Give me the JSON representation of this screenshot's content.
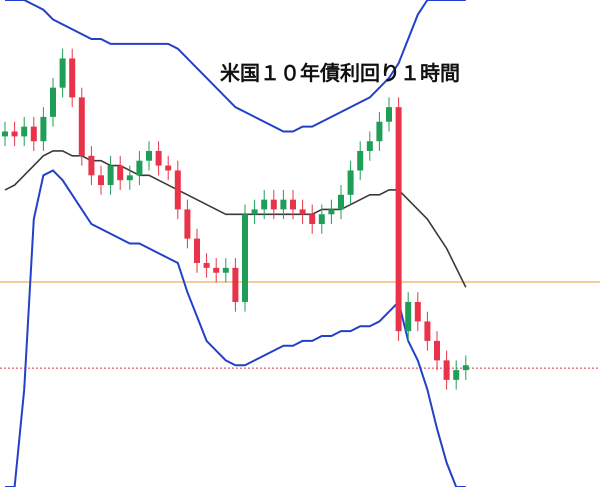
{
  "chart_data": {
    "type": "candlestick",
    "title": "米国１０年債利回り１時間",
    "ylim": [
      0,
      100
    ],
    "up_color": "#1e9e57",
    "down_color": "#e8334a",
    "open": [
      72,
      73,
      72,
      74,
      71,
      76,
      82,
      88,
      80,
      68,
      64,
      62,
      66,
      63,
      64,
      67,
      69,
      66,
      65,
      57,
      51,
      46,
      45,
      44,
      45,
      38,
      56,
      57,
      59,
      57,
      59,
      57,
      56,
      54,
      56,
      57,
      60,
      65,
      69,
      71,
      75,
      78,
      32,
      38,
      34,
      30,
      26,
      22,
      24
    ],
    "high": [
      75,
      75,
      76,
      76,
      78,
      84,
      90,
      90,
      82,
      70,
      66,
      68,
      68,
      66,
      69,
      71,
      71,
      68,
      67,
      59,
      53,
      48,
      47,
      47,
      47,
      58,
      59,
      61,
      61,
      61,
      61,
      59,
      58,
      58,
      59,
      62,
      67,
      71,
      73,
      77,
      80,
      80,
      40,
      40,
      36,
      32,
      28,
      26,
      27
    ],
    "low": [
      70,
      70,
      70,
      69,
      69,
      74,
      80,
      78,
      66,
      62,
      60,
      60,
      61,
      61,
      62,
      65,
      64,
      63,
      55,
      49,
      44,
      43,
      42,
      42,
      36,
      36,
      54,
      55,
      55,
      55,
      55,
      54,
      52,
      52,
      54,
      55,
      58,
      63,
      67,
      69,
      73,
      30,
      30,
      32,
      28,
      24,
      20,
      20,
      22
    ],
    "close": [
      73,
      72,
      74,
      71,
      76,
      82,
      88,
      80,
      68,
      64,
      62,
      66,
      63,
      64,
      67,
      69,
      66,
      65,
      57,
      51,
      46,
      45,
      44,
      45,
      38,
      56,
      57,
      59,
      57,
      59,
      57,
      56,
      54,
      56,
      57,
      60,
      65,
      69,
      71,
      75,
      78,
      32,
      38,
      34,
      30,
      26,
      22,
      24,
      25
    ],
    "series": [
      {
        "color": "#2340c8",
        "values": [
          100,
          100,
          100,
          99,
          98,
          96,
          95,
          94,
          93,
          92,
          92,
          91,
          91,
          91,
          91,
          91,
          91,
          91,
          90,
          88,
          86,
          84,
          82,
          80,
          78,
          77,
          76,
          75,
          74,
          73,
          73,
          74,
          74,
          75,
          76,
          77,
          78,
          79,
          80,
          82,
          84,
          87,
          92,
          97,
          100,
          100,
          100,
          100,
          100
        ]
      },
      {
        "color": "#2340c8",
        "values": [
          0,
          0,
          20,
          55,
          64,
          65,
          63,
          60,
          57,
          54,
          53,
          52,
          51,
          50,
          50,
          49,
          48,
          47,
          46,
          40,
          35,
          30,
          28,
          26,
          25,
          25,
          26,
          27,
          28,
          29,
          29,
          30,
          30,
          31,
          31,
          32,
          32,
          33,
          33,
          34,
          36,
          38,
          30,
          26,
          20,
          12,
          5,
          0,
          0
        ]
      },
      {
        "color": "#3a3a3a",
        "values": [
          61,
          62,
          64,
          66,
          68,
          69,
          69,
          68,
          68,
          67,
          67,
          66,
          66,
          65,
          64,
          64,
          63,
          62,
          61,
          60,
          59,
          58,
          57,
          56,
          56,
          56,
          56,
          56,
          56,
          56,
          56,
          56,
          56,
          57,
          57,
          57,
          58,
          59,
          60,
          60,
          61,
          61,
          59,
          57,
          55,
          52,
          49,
          45,
          41
        ]
      }
    ],
    "hlines": [
      {
        "value": 42.1,
        "color": "#e0a030",
        "dash": false
      },
      {
        "value": 24.4,
        "color": "#e8334a",
        "dash": true
      }
    ]
  }
}
